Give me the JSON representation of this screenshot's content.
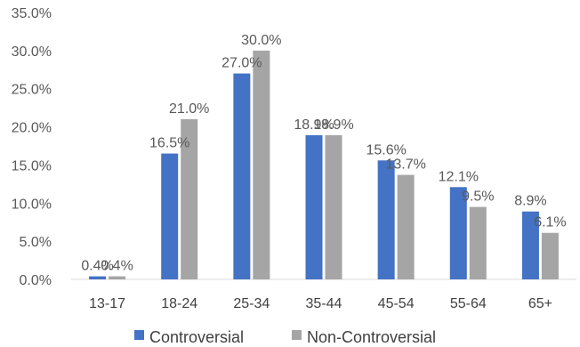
{
  "chart_data": {
    "type": "bar",
    "categories": [
      "13-17",
      "18-24",
      "25-34",
      "35-44",
      "45-54",
      "55-64",
      "65+"
    ],
    "series": [
      {
        "name": "Controversial",
        "values": [
          0.4,
          16.5,
          27.0,
          18.9,
          15.6,
          12.1,
          8.9
        ],
        "labels": [
          "0.4%",
          "16.5%",
          "27.0%",
          "18.9%",
          "15.6%",
          "12.1%",
          "8.9%"
        ],
        "color": "#4472C4"
      },
      {
        "name": "Non-Controversial",
        "values": [
          0.4,
          21.0,
          30.0,
          18.9,
          13.7,
          9.5,
          6.1
        ],
        "labels": [
          "0.4%",
          "21.0%",
          "30.0%",
          "18.9%",
          "13.7%",
          "9.5%",
          "6.1%"
        ],
        "color": "#A5A5A5"
      }
    ],
    "ylim": [
      0,
      35
    ],
    "yticks": [
      0,
      5,
      10,
      15,
      20,
      25,
      30,
      35
    ],
    "ytick_labels": [
      "0.0%",
      "5.0%",
      "10.0%",
      "15.0%",
      "20.0%",
      "25.0%",
      "30.0%",
      "35.0%"
    ],
    "grid": false,
    "legend_position": "bottom"
  }
}
